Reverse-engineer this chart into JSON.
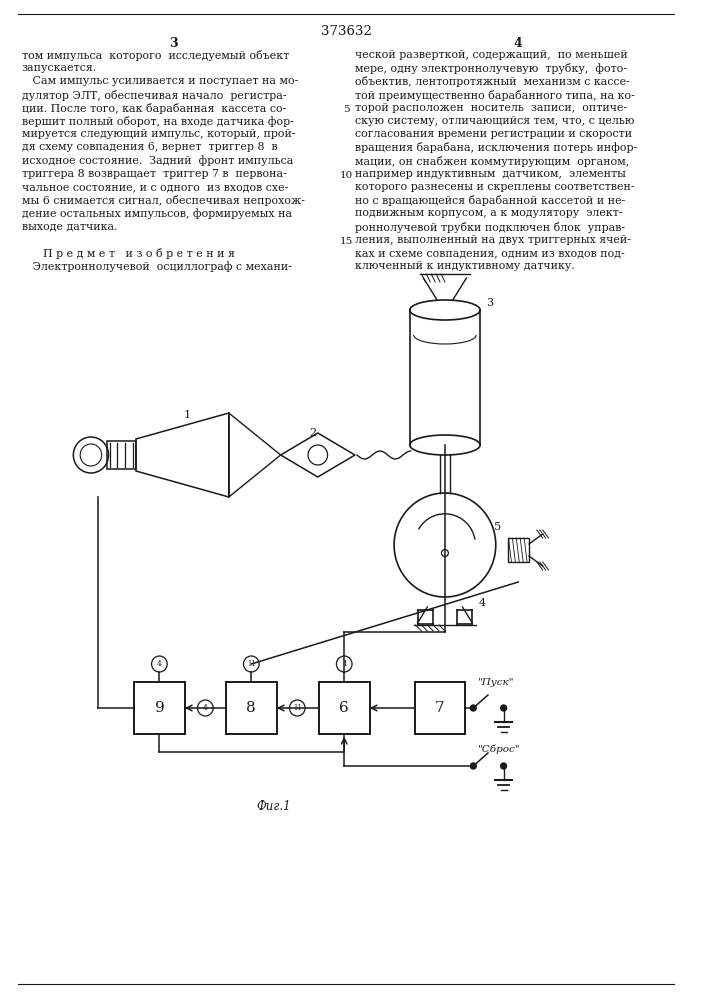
{
  "title": "373632",
  "bg_color": "#ffffff",
  "text_color": "#1a1a1a",
  "line_color": "#1a1a1a",
  "col1_lines": [
    "том импульса  которого  исследуемый объект",
    "запускается.",
    "   Сам импульс усиливается и поступает на мо-",
    "дулятор ЭЛТ, обеспечивая начало  регистра-",
    "ции. После того, как барабанная  кассета со-",
    "вершит полный оборот, на входе датчика фор-",
    "мируется следующий импульс, который, прой-",
    "дя схему совпадения 6, вернет  триггер 8  в",
    "исходное состояние.  Задний  фронт импульса",
    "триггера 8 возвращает  триггер 7 в  первона-",
    "чальное состояние, и с одного  из входов схе-",
    "мы 6 снимается сигнал, обеспечивая непрохож-",
    "дение остальных импульсов, формируемых на",
    "выходе датчика.",
    "",
    "      П р е д м е т   и з о б р е т е н и я",
    "   Электроннолучевой  осциллограф с механи-"
  ],
  "col2_lines": [
    "ческой разверткой, содержащий,  по меньшей",
    "мере, одну электроннолучевую  трубку,  фото-",
    "объектив, лентопротяжный  механизм с кассе-",
    "той преимущественно барабанного типа, на ко-",
    "торой расположен  носитель  записи,  оптиче-",
    "скую систему, отличающийся тем, что, с целью",
    "согласования времени регистрации и скорости",
    "вращения барабана, исключения потерь инфор-",
    "мации, он снабжен коммутирующим  органом,",
    "например индуктивным  датчиком,  элементы",
    "которого разнесены и скреплены соответствен-",
    "но с вращающейся барабанной кассетой и не-",
    "подвижным корпусом, а к модулятору  элект-",
    "роннолучевой трубки подключен блок  управ-",
    "ления, выполненный на двух триггерных ячей-",
    "ках и схеме совпадения, одним из входов под-",
    "ключенный к индуктивному датчику."
  ],
  "line_num_5_row": 4,
  "line_num_10_row": 9,
  "line_num_15_row": 14
}
